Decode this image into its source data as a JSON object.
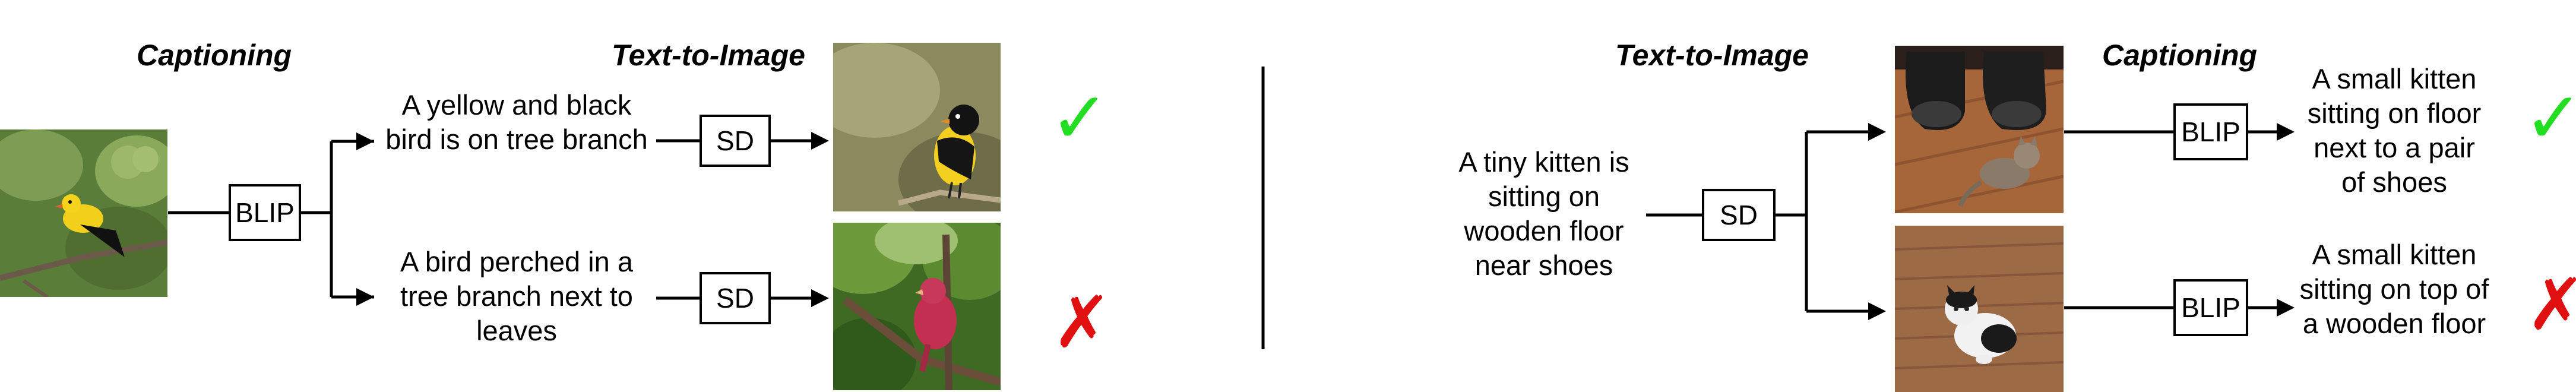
{
  "left": {
    "header_captioning": "Captioning",
    "header_t2i": "Text-to-Image",
    "blip_label": "BLIP",
    "caption_top": "A yellow and black bird is on tree branch",
    "caption_bottom": "A bird perched in a tree branch next to leaves",
    "sd_top_label": "SD",
    "sd_bottom_label": "SD",
    "mark_top": "✓",
    "mark_bottom": "✗"
  },
  "right": {
    "header_t2i": "Text-to-Image",
    "header_captioning": "Captioning",
    "prompt": "A tiny kitten is sitting on wooden floor near shoes",
    "sd_label": "SD",
    "blip_top_label": "BLIP",
    "blip_bottom_label": "BLIP",
    "caption_top": "A small kitten sitting on floor next to a pair of shoes",
    "caption_bottom": "A small kitten sitting on top of a wooden floor",
    "mark_top": "✓",
    "mark_bottom": "✗"
  },
  "colors": {
    "check": "#22dd22",
    "cross": "#e01010"
  }
}
